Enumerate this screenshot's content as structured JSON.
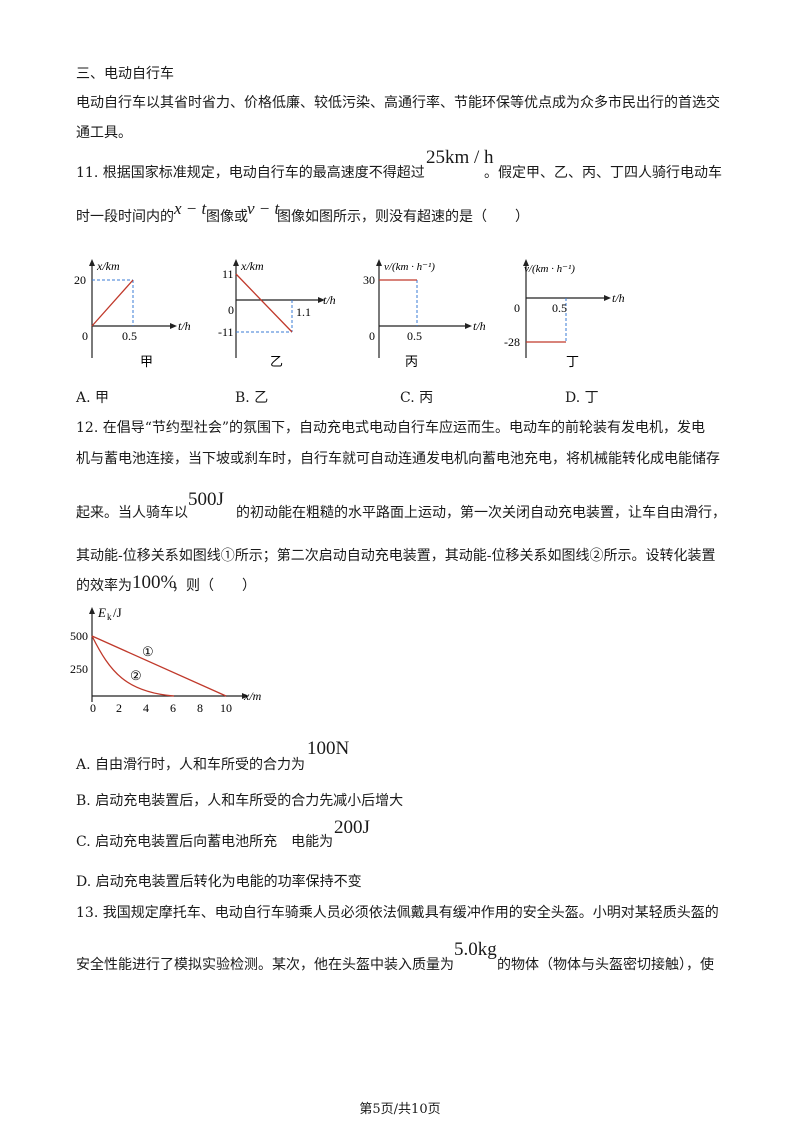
{
  "section": {
    "title": "三、电动自行车",
    "intro1": "电动自行车以其省时省力、价格低廉、较低污染、高通行率、节能环保等优点成为众多市民出行的首选交",
    "intro2": "通工具。"
  },
  "q11": {
    "l1a": "11. 根据国家标准规定，电动自行车的最高速度不得超过",
    "speed": "25km / h",
    "l1b": "。假定甲、乙、丙、丁四人骑行电动车",
    "l2a": "时一段时间内的",
    "xt": "x − t",
    "l2b": "图像或",
    "vt": "v − t",
    "l2c": "图像如图所示，则没有超速的是（　　）",
    "graphs": [
      {
        "ylabel": "x/km",
        "xlabel": "t/h",
        "y1": "20",
        "x1": "0.5",
        "origin": "0",
        "caption": "甲"
      },
      {
        "ylabel": "x/km",
        "xlabel": "t/h",
        "y1": "11",
        "y2": "-11",
        "x1": "1.1",
        "origin": "0",
        "caption": "乙"
      },
      {
        "ylabel": "v/(km · h⁻¹)",
        "xlabel": "t/h",
        "y1": "30",
        "x1": "0.5",
        "origin": "0",
        "caption": "丙"
      },
      {
        "ylabel": "v/(km · h⁻¹)",
        "xlabel": "t/h",
        "y1": "-28",
        "x1": "0.5",
        "origin": "0",
        "caption": "丁"
      }
    ],
    "options": [
      "A. 甲",
      "B. 乙",
      "C. 丙",
      "D. 丁"
    ]
  },
  "q12": {
    "l1": "12. 在倡导“节约型社会”的氛围下，自动充电式电动自行车应运而生。电动车的前轮装有发电机，发电",
    "l2": "机与蓄电池连接，当下坡或刹车时，自行车就可自动连通发电机向蓄电池充电，将机械能转化成电能储存",
    "l3a": "起来。当人骑车以",
    "ek": "500J",
    "l3b": "的初动能在粗糙的水平路面上运动，第一次关闭自动充电装置，让车自由滑行，",
    "l4": "其动能-位移关系如图线①所示；第二次启动自动充电装置，其动能-位移关系如图线②所示。设转化装置",
    "l5a": "的效率为",
    "eff": "100%",
    "l5b": "，则（　　）",
    "graph": {
      "ylabel_main": "E",
      "ylabel_sub": "k",
      "ylabel_unit": "/J",
      "xlabel": "x/m",
      "y_ticks": [
        "500",
        "250"
      ],
      "x_ticks": [
        "0",
        "2",
        "4",
        "6",
        "8",
        "10"
      ],
      "curve1": "①",
      "curve2": "②"
    },
    "optA_text": "A. 自由滑行时，人和车所受的合力为",
    "optA_val": "100N",
    "optB": "B. 启动充电装置后，人和车所受的合力先减小后增大",
    "optC_text": "C. 启动充电装置后向蓄电池所充　电能为",
    "optC_val": "200J",
    "optD": "D. 启动充电装置后转化为电能的功率保持不变"
  },
  "q13": {
    "l1": "13. 我国规定摩托车、电动自行车骑乘人员必须依法佩戴具有缓冲作用的安全头盔。小明对某轻质头盔的",
    "l2a": "安全性能进行了模拟实验检测。某次，他在头盔中装入质量为",
    "mass": "5.0kg",
    "l2b": "的物体（物体与头盔密切接触），使"
  },
  "footer": "第5页/共10页"
}
